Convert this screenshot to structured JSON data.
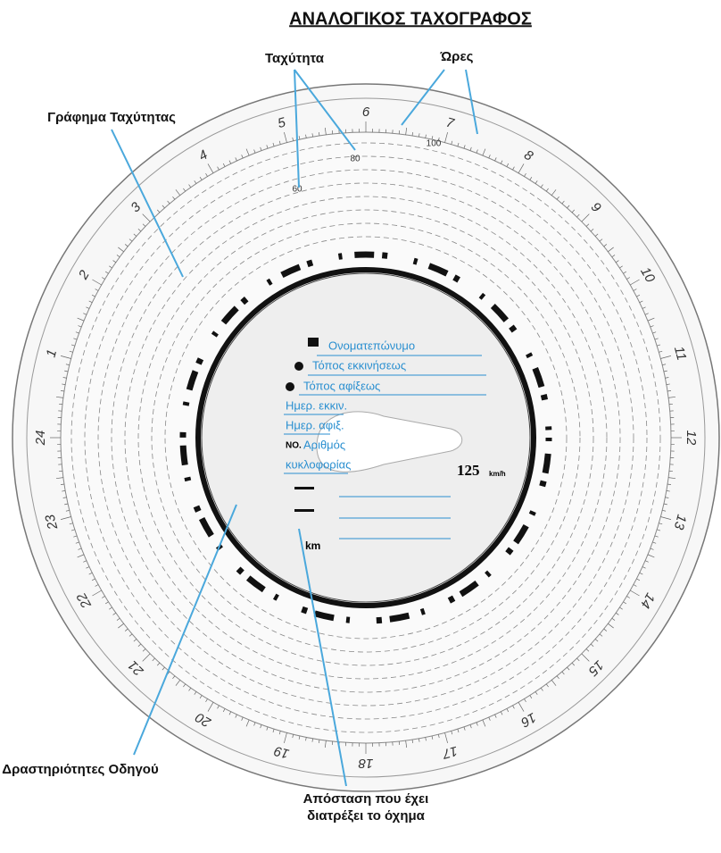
{
  "header": {
    "title": "ΑΝΑΛΟΓΙΚΟΣ ΤΑΧΟΓΡΑΦΟΣ"
  },
  "annotations": {
    "speed": "Ταχύτητα",
    "hours": "Ώρες",
    "speed_graph": "Γράφημα Ταχύτητας",
    "driver_activities": "Δραστηριότητες Οδηγού",
    "distance": [
      "Απόσταση που έχει",
      "διατρέξει το όχημα"
    ]
  },
  "disc": {
    "hours": [
      "1",
      "2",
      "3",
      "4",
      "5",
      "6",
      "7",
      "8",
      "9",
      "10",
      "11",
      "12",
      "13",
      "14",
      "15",
      "16",
      "17",
      "18",
      "19",
      "20",
      "21",
      "22",
      "23",
      "24"
    ],
    "speeds": [
      "60",
      "80",
      "100"
    ],
    "fields": [
      "Ονοματεπώνυμο",
      "Τόπος εκκινήσεως",
      "Τόπος αφίξεως",
      "Ημερ. εκκιν.",
      "Ημερ. αφιξ.",
      "Αριθμός",
      "κυκλοφορίας"
    ],
    "no_label": "NO.",
    "max_speed": "125",
    "speed_unit": "km/h",
    "km": "km"
  }
}
